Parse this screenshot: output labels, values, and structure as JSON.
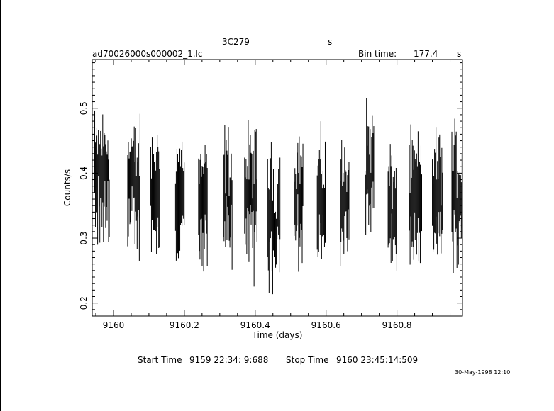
{
  "header": {
    "object": "3C279",
    "object_unit": "s",
    "filename": "ad70026000s000002_1.lc",
    "bin_time_label": "Bin time:",
    "bin_time_value": "177.4",
    "bin_time_unit": "s"
  },
  "footer": {
    "start_label": "Start Time",
    "start_value": "9159 22:34: 9:688",
    "stop_label": "Stop Time",
    "stop_value": "9160 23:45:14:509",
    "timestamp": "30-May-1998 12:10"
  },
  "chart_data": {
    "type": "scatter",
    "title": "3C279",
    "xlabel": "Time (days)",
    "ylabel": "Counts/s",
    "xlim": [
      9159.94,
      9160.985
    ],
    "ylim": [
      0.18,
      0.575
    ],
    "x_ticks": [
      9160,
      9160.2,
      9160.4,
      9160.6,
      9160.8
    ],
    "x_tick_labels": [
      "9160",
      "9160.2",
      "9160.4",
      "9160.6",
      "9160.8"
    ],
    "y_ticks": [
      0.2,
      0.3,
      0.4,
      0.5
    ],
    "y_tick_labels": [
      "0.2",
      "0.3",
      "0.4",
      "0.5"
    ],
    "grid": false,
    "error_bars": true,
    "segments": [
      {
        "start": 9159.945,
        "end": 9159.99,
        "value_range": [
          0.3,
          0.48
        ]
      },
      {
        "start": 9160.04,
        "end": 9160.075,
        "value_range": [
          0.28,
          0.47
        ]
      },
      {
        "start": 9160.105,
        "end": 9160.13,
        "value_range": [
          0.3,
          0.45
        ]
      },
      {
        "start": 9160.175,
        "end": 9160.2,
        "value_range": [
          0.3,
          0.44
        ]
      },
      {
        "start": 9160.24,
        "end": 9160.265,
        "value_range": [
          0.26,
          0.43
        ]
      },
      {
        "start": 9160.31,
        "end": 9160.335,
        "value_range": [
          0.27,
          0.46
        ]
      },
      {
        "start": 9160.37,
        "end": 9160.405,
        "value_range": [
          0.26,
          0.46
        ]
      },
      {
        "start": 9160.435,
        "end": 9160.47,
        "value_range": [
          0.25,
          0.42
        ]
      },
      {
        "start": 9160.51,
        "end": 9160.535,
        "value_range": [
          0.28,
          0.45
        ]
      },
      {
        "start": 9160.575,
        "end": 9160.6,
        "value_range": [
          0.27,
          0.44
        ]
      },
      {
        "start": 9160.64,
        "end": 9160.665,
        "value_range": [
          0.25,
          0.45
        ]
      },
      {
        "start": 9160.71,
        "end": 9160.735,
        "value_range": [
          0.3,
          0.5
        ]
      },
      {
        "start": 9160.775,
        "end": 9160.8,
        "value_range": [
          0.26,
          0.42
        ]
      },
      {
        "start": 9160.835,
        "end": 9160.87,
        "value_range": [
          0.27,
          0.44
        ]
      },
      {
        "start": 9160.9,
        "end": 9160.93,
        "value_range": [
          0.27,
          0.45
        ]
      },
      {
        "start": 9160.955,
        "end": 9160.985,
        "value_range": [
          0.27,
          0.46
        ]
      }
    ]
  }
}
